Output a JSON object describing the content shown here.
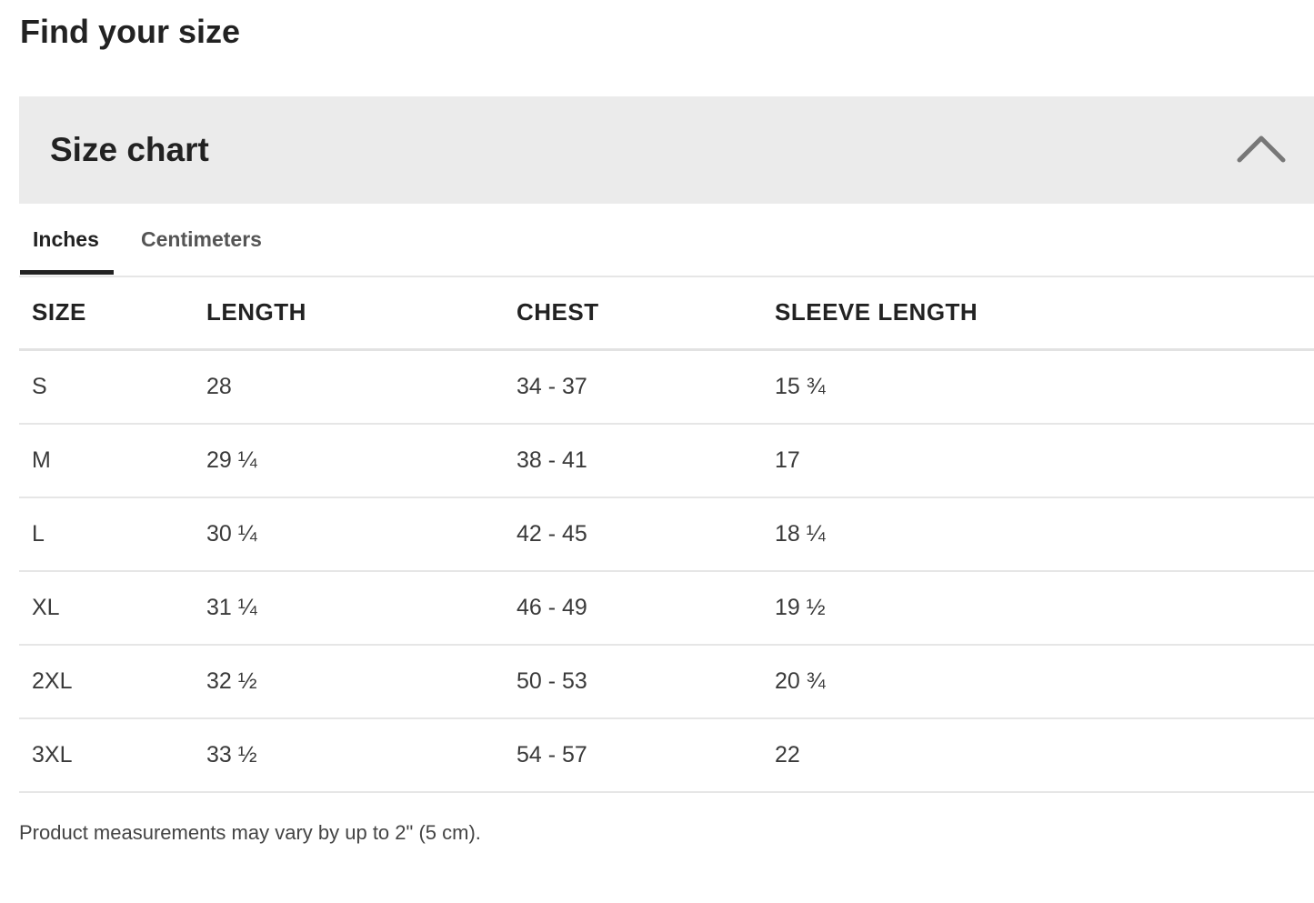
{
  "page": {
    "title": "Find your size",
    "note": "Product measurements may vary by up to 2\" (5 cm)."
  },
  "accordion": {
    "title": "Size chart",
    "icon": "chevron-up-icon",
    "expanded": true
  },
  "tabs": [
    {
      "label": "Inches",
      "active": true
    },
    {
      "label": "Centimeters",
      "active": false
    }
  ],
  "table": {
    "headers": [
      "SIZE",
      "LENGTH",
      "CHEST",
      "SLEEVE LENGTH"
    ],
    "rows": [
      [
        "S",
        "28",
        "34 - 37",
        "15 ¾"
      ],
      [
        "M",
        "29 ¼",
        "38 - 41",
        "17"
      ],
      [
        "L",
        "30 ¼",
        "42 - 45",
        "18 ¼"
      ],
      [
        "XL",
        "31 ¼",
        "46 - 49",
        "19 ½"
      ],
      [
        "2XL",
        "32 ½",
        "50 - 53",
        "20 ¾"
      ],
      [
        "3XL",
        "33 ½",
        "54 - 57",
        "22"
      ]
    ]
  }
}
